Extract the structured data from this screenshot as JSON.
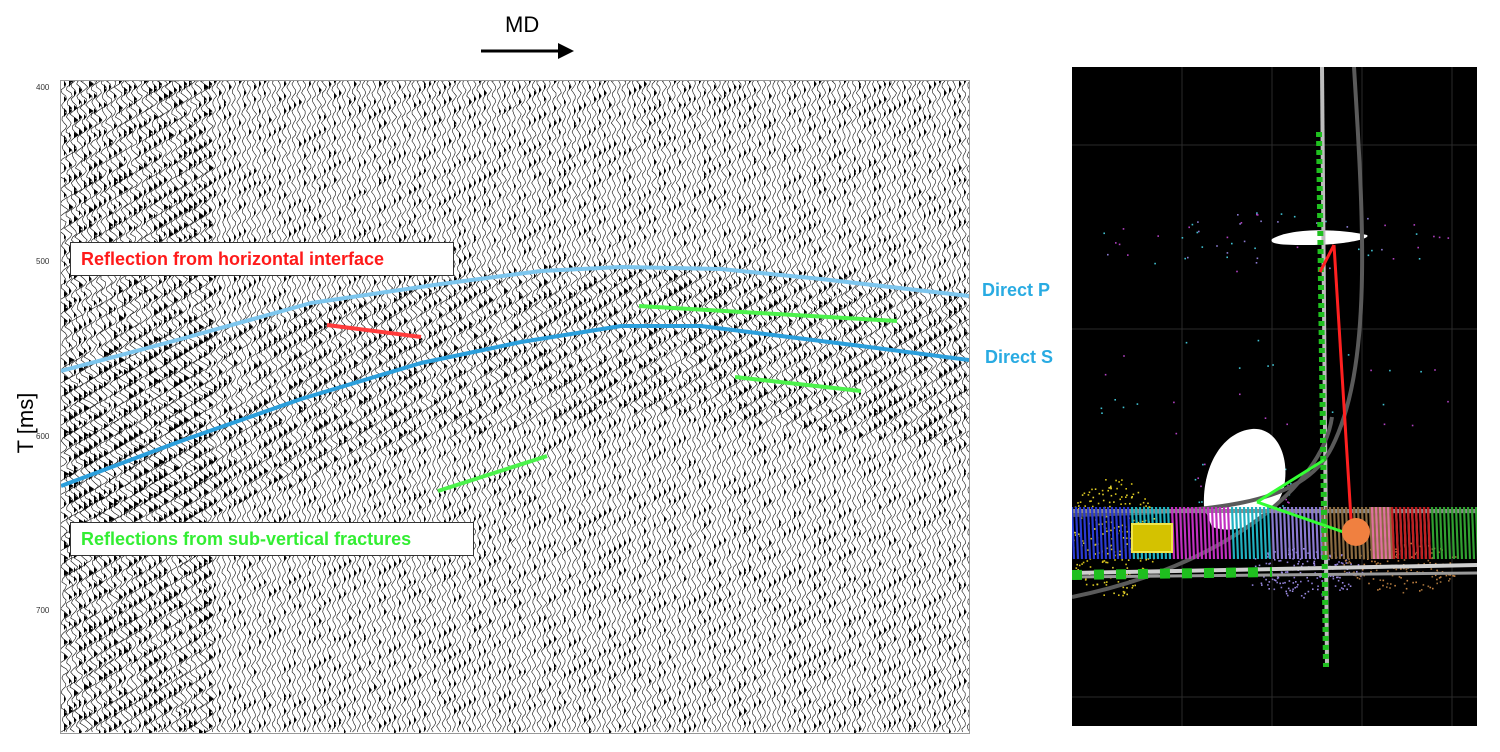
{
  "header": {
    "md_label": "MD"
  },
  "axis": {
    "y_title": "T [ms]",
    "ticks": [
      "400",
      "500",
      "600",
      "700"
    ]
  },
  "annotations": {
    "horizontal_reflection": "Reflection from horizontal interface",
    "fracture_reflections": "Reflections from sub-vertical fractures",
    "direct_p": "Direct P",
    "direct_s": "Direct S"
  },
  "colors": {
    "direct_wave": "#29abe2",
    "horizontal_reflection": "#ff1a1a",
    "fracture_reflection": "#33ee33",
    "view_background": "#000000"
  },
  "icons": {
    "md_arrow": "arrow-right-icon"
  }
}
